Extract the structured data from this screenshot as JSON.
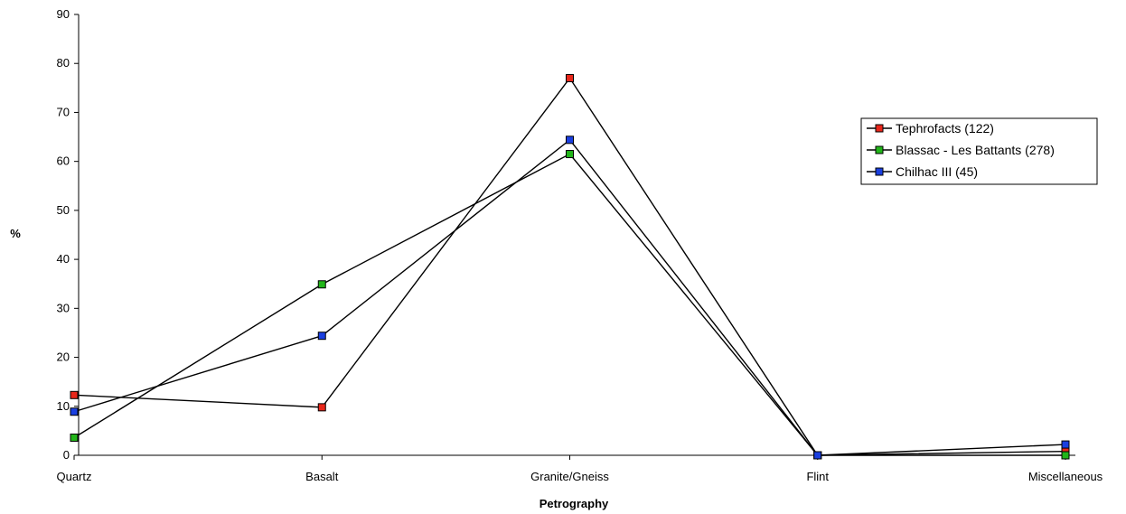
{
  "chart_data": {
    "type": "line",
    "title": "",
    "xlabel": "Petrography",
    "ylabel": "%",
    "ylim": [
      0,
      90
    ],
    "yticks": [
      0,
      10,
      20,
      30,
      40,
      50,
      60,
      70,
      80,
      90
    ],
    "grid": false,
    "legend_position": "right",
    "categories": [
      "Quartz",
      "Basalt",
      "Granite/Gneiss",
      "Flint",
      "Miscellaneous"
    ],
    "series": [
      {
        "name": "Tephrofacts (122)",
        "color": "#e8271b",
        "values": [
          12.3,
          9.8,
          77.0,
          0,
          0.8
        ]
      },
      {
        "name": "Blassac - Les Battants (278)",
        "color": "#22b51a",
        "values": [
          3.6,
          34.9,
          61.5,
          0,
          0
        ]
      },
      {
        "name": "Chilhac III (45)",
        "color": "#1a3fe0",
        "values": [
          8.9,
          24.4,
          64.4,
          0,
          2.2
        ]
      }
    ]
  }
}
